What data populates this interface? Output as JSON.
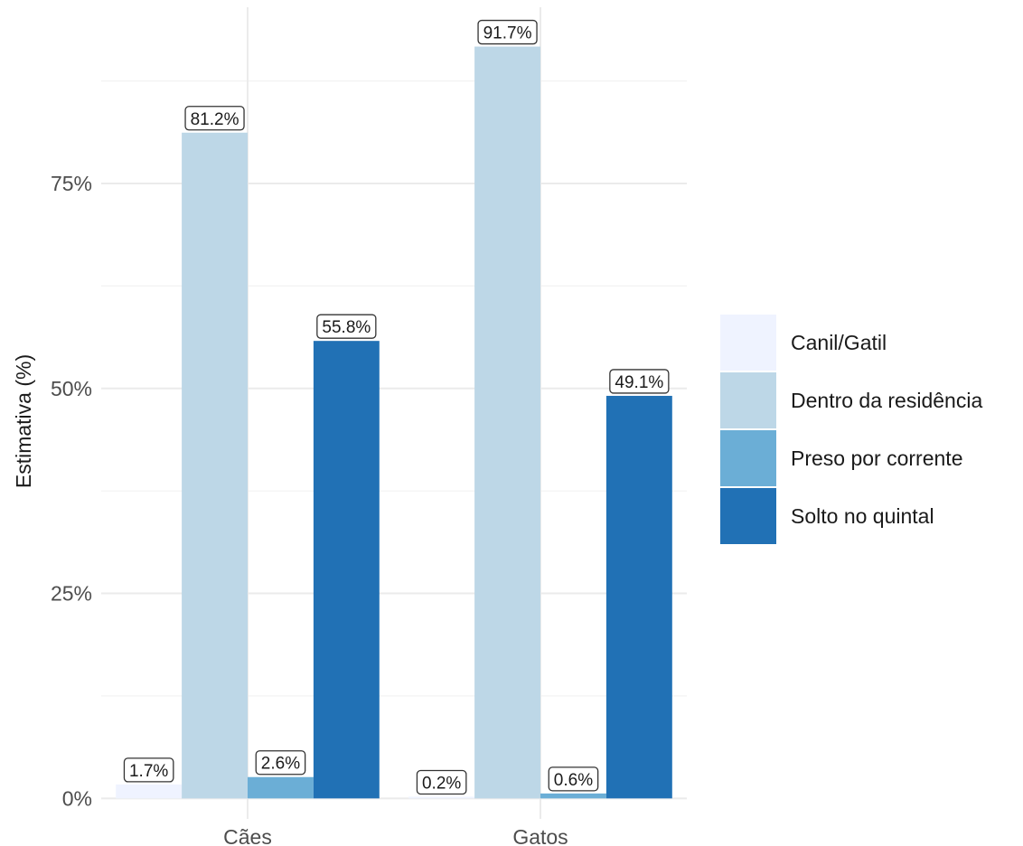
{
  "chart_data": {
    "type": "bar",
    "title": "",
    "xlabel": "",
    "ylabel": "Estimativa (%)",
    "categories": [
      "Cães",
      "Gatos"
    ],
    "series": [
      {
        "name": "Canil/Gatil",
        "values": [
          1.7,
          0.2
        ],
        "labels": [
          "1.7%",
          "0.2%"
        ],
        "color": "#eff3ff"
      },
      {
        "name": "Dentro da residência",
        "values": [
          81.2,
          91.7
        ],
        "labels": [
          "81.2%",
          "91.7%"
        ],
        "color": "#bdd7e7"
      },
      {
        "name": "Preso por corrente",
        "values": [
          2.6,
          0.6
        ],
        "labels": [
          "2.6%",
          "0.6%"
        ],
        "color": "#6baed6"
      },
      {
        "name": "Solto no quintal",
        "values": [
          55.8,
          49.1
        ],
        "labels": [
          "55.8%",
          "49.1%"
        ],
        "color": "#2171b5"
      }
    ],
    "yticks": [
      0,
      25,
      50,
      75
    ],
    "ytick_labels": [
      "0%",
      "25%",
      "50%",
      "75%"
    ],
    "ylim": [
      -2.5,
      96.5
    ],
    "grid": true,
    "legend_position": "right"
  }
}
